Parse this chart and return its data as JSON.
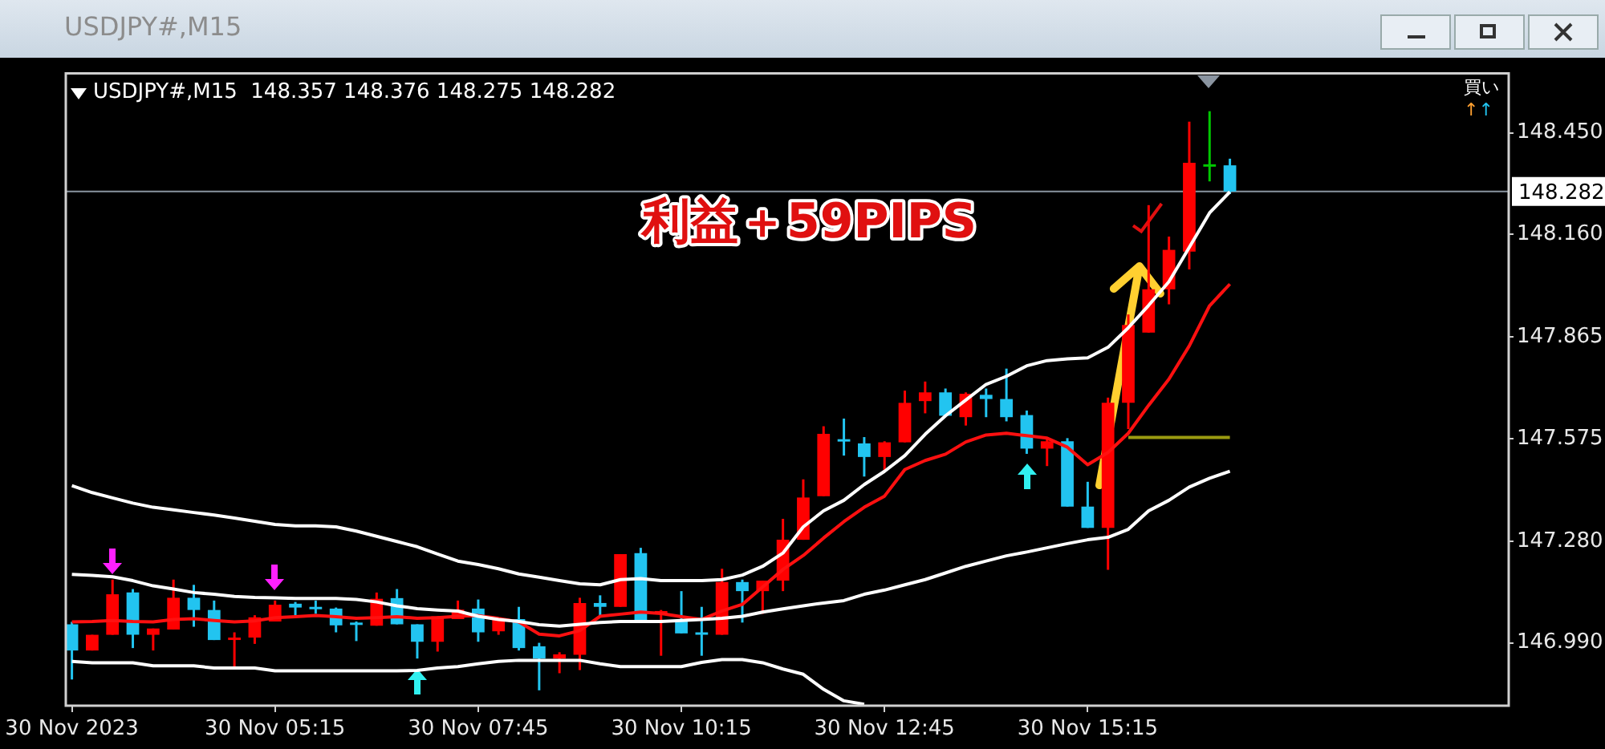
{
  "chart_data": {
    "type": "candlestick",
    "title": "USDJPY#,M15",
    "subtitle": "USDJPY#,M15  148.357 148.376 148.275 148.282",
    "categories": [
      "30 Nov 2023",
      null,
      null,
      null,
      null,
      null,
      null,
      null,
      null,
      null,
      "30 Nov 05:15",
      null,
      null,
      null,
      null,
      null,
      null,
      null,
      null,
      null,
      "30 Nov 07:45",
      null,
      null,
      null,
      null,
      null,
      null,
      null,
      null,
      null,
      "30 Nov 10:15",
      null,
      null,
      null,
      null,
      null,
      null,
      null,
      null,
      null,
      "30 Nov 12:45",
      null,
      null,
      null,
      null,
      null,
      null,
      null,
      null,
      null,
      "30 Nov 15:15",
      null,
      null,
      null,
      null,
      null,
      null,
      null
    ],
    "ohlc": [
      [
        147.043,
        147.05,
        146.885,
        146.968
      ],
      [
        146.968,
        147.013,
        146.968,
        147.013
      ],
      [
        147.013,
        147.171,
        147.013,
        147.129
      ],
      [
        147.134,
        147.144,
        146.975,
        147.013
      ],
      [
        147.013,
        147.031,
        146.968,
        147.031
      ],
      [
        147.028,
        147.171,
        147.028,
        147.119
      ],
      [
        147.119,
        147.156,
        147.036,
        147.084
      ],
      [
        147.084,
        147.111,
        146.998,
        146.998
      ],
      [
        146.999,
        147.02,
        146.922,
        147.005
      ],
      [
        147.005,
        147.069,
        146.987,
        147.063
      ],
      [
        147.051,
        147.111,
        147.051,
        147.099
      ],
      [
        147.102,
        147.107,
        147.069,
        147.091
      ],
      [
        147.093,
        147.111,
        147.073,
        147.09
      ],
      [
        147.088,
        147.091,
        147.02,
        147.04
      ],
      [
        147.048,
        147.051,
        146.995,
        147.042
      ],
      [
        147.039,
        147.134,
        147.039,
        147.116
      ],
      [
        147.118,
        147.144,
        147.043,
        147.043
      ],
      [
        147.043,
        147.043,
        146.945,
        146.993
      ],
      [
        146.993,
        147.066,
        146.965,
        147.066
      ],
      [
        147.058,
        147.111,
        147.058,
        147.085
      ],
      [
        147.088,
        147.114,
        146.993,
        147.02
      ],
      [
        147.023,
        147.058,
        147.013,
        147.058
      ],
      [
        147.058,
        147.093,
        146.968,
        146.975
      ],
      [
        146.98,
        146.99,
        146.854,
        146.945
      ],
      [
        146.945,
        146.963,
        146.903,
        146.957
      ],
      [
        146.956,
        147.119,
        146.912,
        147.104
      ],
      [
        147.104,
        147.126,
        147.066,
        147.093
      ],
      [
        147.093,
        147.244,
        147.093,
        147.244
      ],
      [
        147.247,
        147.262,
        147.054,
        147.054
      ],
      [
        147.073,
        147.084,
        146.953,
        147.081
      ],
      [
        147.054,
        147.138,
        147.017,
        147.017
      ],
      [
        147.02,
        147.093,
        146.953,
        147.016
      ],
      [
        147.013,
        147.202,
        147.013,
        147.164
      ],
      [
        147.164,
        147.171,
        147.048,
        147.138
      ],
      [
        147.138,
        147.168,
        147.073,
        147.168
      ],
      [
        147.168,
        147.345,
        147.138,
        147.285
      ],
      [
        147.285,
        147.458,
        147.285,
        147.406
      ],
      [
        147.41,
        147.61,
        147.41,
        147.588
      ],
      [
        147.573,
        147.632,
        147.526,
        147.569
      ],
      [
        147.561,
        147.579,
        147.466,
        147.522
      ],
      [
        147.522,
        147.567,
        147.481,
        147.564
      ],
      [
        147.564,
        147.712,
        147.564,
        147.677
      ],
      [
        147.682,
        147.738,
        147.647,
        147.707
      ],
      [
        147.707,
        147.718,
        147.64,
        147.64
      ],
      [
        147.636,
        147.707,
        147.612,
        147.703
      ],
      [
        147.7,
        147.718,
        147.636,
        147.688
      ],
      [
        147.688,
        147.775,
        147.624,
        147.636
      ],
      [
        147.642,
        147.655,
        147.531,
        147.546
      ],
      [
        147.546,
        147.579,
        147.496,
        147.567
      ],
      [
        147.567,
        147.576,
        147.38,
        147.38
      ],
      [
        147.38,
        147.451,
        147.319,
        147.319
      ],
      [
        147.319,
        147.692,
        147.199,
        147.677
      ],
      [
        147.677,
        147.93,
        147.602,
        147.9
      ],
      [
        147.878,
        148.243,
        147.878,
        148.002
      ],
      [
        148.002,
        148.153,
        147.959,
        148.115
      ],
      [
        148.11,
        148.482,
        148.059,
        148.364
      ],
      [
        148.36,
        148.512,
        148.311,
        148.36
      ],
      [
        148.357,
        148.376,
        148.275,
        148.282
      ]
    ],
    "colors": [
      "#22c4f0",
      "#ff0000",
      "#ff0000",
      "#22c4f0",
      "#ff0000",
      "#ff0000",
      "#22c4f0",
      "#22c4f0",
      "#ff0000",
      "#ff0000",
      "#ff0000",
      "#22c4f0",
      "#22c4f0",
      "#22c4f0",
      "#22c4f0",
      "#ff0000",
      "#22c4f0",
      "#22c4f0",
      "#ff0000",
      "#ff0000",
      "#22c4f0",
      "#ff0000",
      "#22c4f0",
      "#22c4f0",
      "#ff0000",
      "#ff0000",
      "#22c4f0",
      "#ff0000",
      "#22c4f0",
      "#ff0000",
      "#22c4f0",
      "#22c4f0",
      "#ff0000",
      "#22c4f0",
      "#ff0000",
      "#ff0000",
      "#ff0000",
      "#ff0000",
      "#22c4f0",
      "#22c4f0",
      "#ff0000",
      "#ff0000",
      "#ff0000",
      "#22c4f0",
      "#ff0000",
      "#22c4f0",
      "#22c4f0",
      "#22c4f0",
      "#ff0000",
      "#22c4f0",
      "#22c4f0",
      "#ff0000",
      "#ff0000",
      "#ff0000",
      "#ff0000",
      "#ff0000",
      "#00c800",
      "#22c4f0"
    ],
    "series": [
      {
        "type": "line",
        "color": "#ffffff",
        "values": [
          147.44,
          147.42,
          147.405,
          147.39,
          147.378,
          147.371,
          147.363,
          147.356,
          147.347,
          147.338,
          147.329,
          147.325,
          147.325,
          147.322,
          147.31,
          147.295,
          147.28,
          147.265,
          147.244,
          147.224,
          147.214,
          147.202,
          147.187,
          147.178,
          147.168,
          147.159,
          147.156,
          147.171,
          147.174,
          147.168,
          147.168,
          147.168,
          147.171,
          147.184,
          147.209,
          147.247,
          147.322,
          147.368,
          147.398,
          147.443,
          147.481,
          147.526,
          147.587,
          147.64,
          147.685,
          147.73,
          147.753,
          147.783,
          147.798,
          147.803,
          147.806,
          147.836,
          147.892,
          147.956,
          148.024,
          148.122,
          148.221,
          148.281
        ]
      },
      {
        "type": "line",
        "color": "#ffffff",
        "values": [
          147.186,
          147.183,
          147.179,
          147.168,
          147.153,
          147.144,
          147.134,
          147.129,
          147.123,
          147.12,
          147.119,
          147.117,
          147.117,
          147.117,
          147.114,
          147.107,
          147.096,
          147.088,
          147.084,
          147.081,
          147.066,
          147.057,
          147.051,
          147.042,
          147.038,
          147.043,
          147.048,
          147.051,
          147.051,
          147.051,
          147.054,
          147.057,
          147.06,
          147.066,
          147.078,
          147.087,
          147.096,
          147.104,
          147.111,
          147.129,
          147.141,
          147.156,
          147.171,
          147.19,
          147.209,
          147.224,
          147.239,
          147.25,
          147.262,
          147.274,
          147.285,
          147.292,
          147.315,
          147.368,
          147.398,
          147.436,
          147.461,
          147.481
        ]
      },
      {
        "type": "line",
        "color": "#ffffff",
        "values": [
          146.937,
          146.933,
          146.933,
          146.933,
          146.924,
          146.924,
          146.924,
          146.918,
          146.918,
          146.918,
          146.91,
          146.91,
          146.91,
          146.91,
          146.91,
          146.91,
          146.91,
          146.911,
          146.918,
          146.922,
          146.93,
          146.937,
          146.94,
          146.94,
          146.94,
          146.94,
          146.93,
          146.922,
          146.922,
          146.922,
          146.922,
          146.934,
          146.942,
          146.942,
          146.933,
          146.915,
          146.9,
          146.857,
          146.824,
          146.814,
          null,
          null,
          null,
          null,
          null,
          null,
          null,
          null,
          null,
          null,
          null,
          null,
          null,
          null,
          null,
          null,
          null,
          null
        ]
      },
      {
        "type": "line",
        "color": "#ff1010",
        "values": [
          147.05,
          147.051,
          147.054,
          147.051,
          147.05,
          147.057,
          147.059,
          147.054,
          147.05,
          147.053,
          147.062,
          147.065,
          147.068,
          147.065,
          147.06,
          147.062,
          147.065,
          147.06,
          147.062,
          147.066,
          147.068,
          147.06,
          147.05,
          147.015,
          147.01,
          147.025,
          147.066,
          147.072,
          147.078,
          147.074,
          147.065,
          147.057,
          147.081,
          147.1,
          147.15,
          147.2,
          147.24,
          147.29,
          147.337,
          147.378,
          147.41,
          147.486,
          147.512,
          147.53,
          147.565,
          147.585,
          147.59,
          147.583,
          147.576,
          147.55,
          147.5,
          147.535,
          147.59,
          147.67,
          147.745,
          147.84,
          147.955,
          148.017
        ]
      },
      {
        "type": "line",
        "color": "#9a9a10",
        "values": [
          null,
          null,
          null,
          null,
          null,
          null,
          null,
          null,
          null,
          null,
          null,
          null,
          null,
          null,
          null,
          null,
          null,
          null,
          null,
          null,
          null,
          null,
          null,
          null,
          null,
          null,
          null,
          null,
          null,
          null,
          null,
          null,
          null,
          null,
          null,
          null,
          null,
          null,
          null,
          null,
          null,
          null,
          null,
          null,
          null,
          null,
          null,
          null,
          null,
          null,
          null,
          null,
          147.578,
          147.578,
          147.578,
          147.578,
          147.578,
          147.578
        ]
      }
    ],
    "ylim": [
      146.81,
      148.62
    ],
    "yticks": [
      {
        "value": 146.99,
        "label": "146.990"
      },
      {
        "value": 147.28,
        "label": "147.280"
      },
      {
        "value": 147.575,
        "label": "147.575"
      },
      {
        "value": 147.865,
        "label": "147.865"
      },
      {
        "value": 148.16,
        "label": "148.160"
      },
      {
        "value": 148.45,
        "label": "148.450"
      }
    ],
    "ref_lines": [
      {
        "axis": "y",
        "value": 148.282,
        "label": "148.282",
        "color": "#8a94a0"
      }
    ],
    "annotations": [
      "利益＋59PIPS",
      "買い",
      "↑↑"
    ],
    "legend": false
  }
}
